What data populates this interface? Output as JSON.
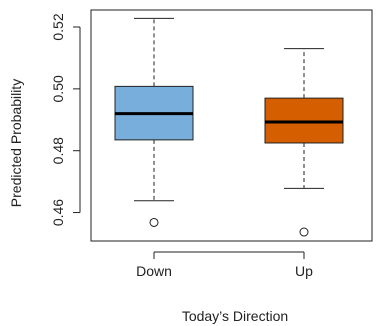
{
  "chart_data": {
    "type": "boxplot",
    "title": "",
    "xlabel": "Today’s Direction",
    "ylabel": "Predicted Probability",
    "ylim": [
      0.4508,
      0.5255
    ],
    "yticks": [
      0.46,
      0.48,
      0.5,
      0.52
    ],
    "ytick_labels": [
      "0.46",
      "0.48",
      "0.50",
      "0.52"
    ],
    "grid": false,
    "categories": [
      "Down",
      "Up"
    ],
    "boxes": [
      {
        "category": "Down",
        "whisker_low": 0.4638,
        "q1": 0.4835,
        "median": 0.492,
        "q3": 0.5008,
        "whisker_high": 0.5228,
        "outliers": [
          0.4568
        ],
        "color": "#78AEDC"
      },
      {
        "category": "Up",
        "whisker_low": 0.4678,
        "q1": 0.4825,
        "median": 0.4893,
        "q3": 0.497,
        "whisker_high": 0.513,
        "outliers": [
          0.4537
        ],
        "color": "#D45E00"
      }
    ]
  }
}
